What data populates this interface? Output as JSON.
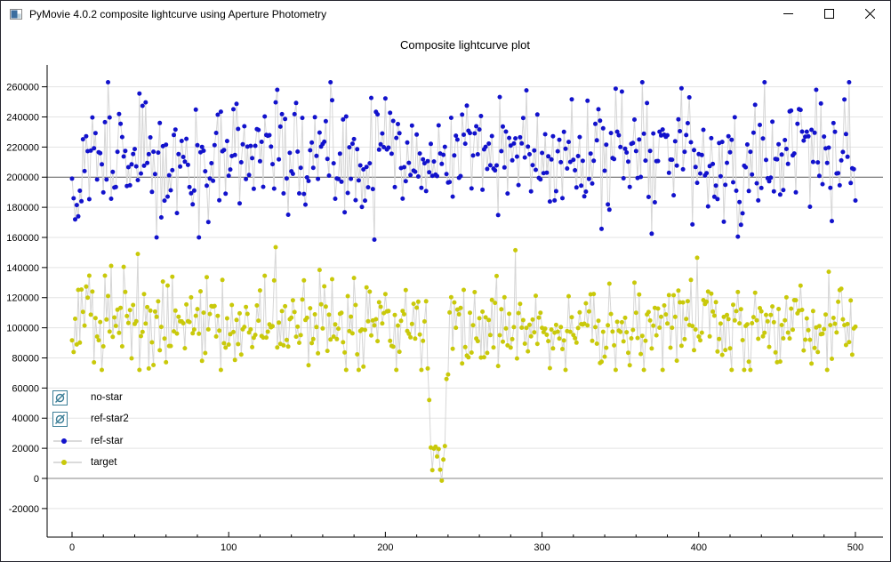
{
  "window": {
    "title": "PyMovie 4.0.2 composite lightcurve using Aperture Photometry"
  },
  "chart_data": {
    "type": "scatter",
    "title": "Composite lightcurve plot",
    "xlabel": "",
    "ylabel": "",
    "xlim": [
      -16,
      518
    ],
    "ylim": [
      -39000,
      274500
    ],
    "x_ticks": [
      0,
      100,
      200,
      300,
      400,
      500
    ],
    "x_minor_step": 20,
    "y_ticks": [
      -20000,
      0,
      20000,
      40000,
      60000,
      80000,
      100000,
      120000,
      140000,
      160000,
      180000,
      200000,
      220000,
      240000,
      260000
    ],
    "grid": {
      "horizontal": true,
      "vertical": false,
      "color": "#e3e3e3"
    },
    "reference_lines": [
      {
        "y": 0,
        "color": "#858585"
      },
      {
        "y": 200000,
        "color": "#5c5c5c"
      }
    ],
    "legend_position": "bottom-left",
    "series": [
      {
        "name": "no-star",
        "visible": false,
        "legend_icon": "eye-off",
        "color": "#3a7d96"
      },
      {
        "name": "ref-star2",
        "visible": false,
        "legend_icon": "eye-off",
        "color": "#3a7d96"
      },
      {
        "name": "ref-star",
        "visible": true,
        "legend_icon": "marker-line",
        "color": "#1212cc",
        "line_color": "#d6d6d6",
        "x_start": 0,
        "x_end": 500,
        "x_step": 1,
        "baseline": {
          "mean": 214000,
          "sd": 20000,
          "clip_min": 160000,
          "clip_max": 263000
        },
        "seed": 101,
        "explicit_points": [
          [
            0,
            199000
          ],
          [
            1,
            186000
          ],
          [
            2,
            172000
          ],
          [
            3,
            181500
          ],
          [
            4,
            174000
          ],
          [
            5,
            191000
          ],
          [
            6,
            184000
          ],
          [
            43,
            255500
          ],
          [
            131,
            258000
          ],
          [
            193,
            158500
          ],
          [
            364,
            263000
          ],
          [
            370,
            162500
          ],
          [
            389,
            259000
          ],
          [
            425,
            160500
          ],
          [
            428,
            176000
          ],
          [
            475,
            258000
          ]
        ]
      },
      {
        "name": "target",
        "visible": true,
        "legend_icon": "marker-line",
        "color": "#c9c90a",
        "line_color": "#d6d6d6",
        "x_start": 0,
        "x_end": 500,
        "x_step": 1,
        "baseline": {
          "mean": 103000,
          "sd": 15000,
          "clip_min": 72000,
          "clip_max": 153000
        },
        "seed": 202,
        "explicit_points": [
          [
            42,
            149000
          ],
          [
            130,
            153500
          ],
          [
            222,
            95500
          ],
          [
            227,
            73000
          ],
          [
            228,
            52000
          ],
          [
            229,
            20500
          ],
          [
            230,
            5500
          ],
          [
            231,
            19800
          ],
          [
            232,
            21000
          ],
          [
            233,
            14500
          ],
          [
            234,
            19500
          ],
          [
            235,
            5800
          ],
          [
            236,
            -1500
          ],
          [
            237,
            12500
          ],
          [
            238,
            21500
          ],
          [
            239,
            66000
          ],
          [
            240,
            69000
          ],
          [
            283,
            151500
          ],
          [
            399,
            146500
          ]
        ]
      }
    ]
  },
  "legend": {
    "items": [
      {
        "label": "no-star",
        "type": "eye-off",
        "color": "#3a7d96"
      },
      {
        "label": "ref-star2",
        "type": "eye-off",
        "color": "#3a7d96"
      },
      {
        "label": "ref-star",
        "type": "marker-line",
        "color": "#1212cc"
      },
      {
        "label": "target",
        "type": "marker-line",
        "color": "#c9c90a"
      }
    ]
  }
}
